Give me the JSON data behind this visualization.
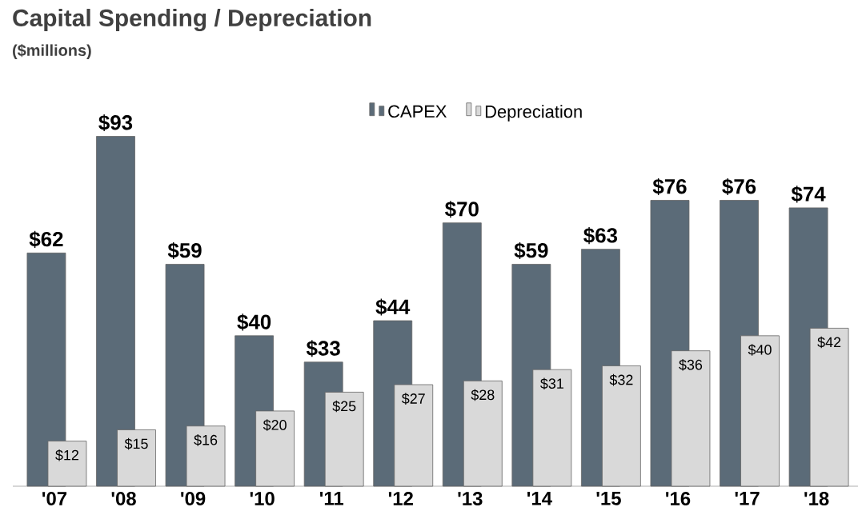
{
  "chart_data": {
    "type": "bar",
    "title": "Capital Spending / Depreciation",
    "subtitle": "($millions)",
    "categories": [
      "'07",
      "'08",
      "'09",
      "'10",
      "'11",
      "'12",
      "'13",
      "'14",
      "'15",
      "'16",
      "'17",
      "'18"
    ],
    "series": [
      {
        "name": "CAPEX",
        "color": "#5b6b78",
        "values": [
          62,
          93,
          59,
          40,
          33,
          44,
          70,
          59,
          63,
          76,
          76,
          74
        ],
        "value_labels": [
          "$62",
          "$93",
          "$59",
          "$40",
          "$33",
          "$44",
          "$70",
          "$59",
          "$63",
          "$76",
          "$76",
          "$74"
        ]
      },
      {
        "name": "Depreciation",
        "color": "#d9d9d9",
        "values": [
          12,
          15,
          16,
          20,
          25,
          27,
          28,
          31,
          32,
          36,
          40,
          42
        ],
        "value_labels": [
          "$12",
          "$15",
          "$16",
          "$20",
          "$25",
          "$27",
          "$28",
          "$31",
          "$32",
          "$36",
          "$40",
          "$42"
        ]
      }
    ],
    "legend": "top"
  }
}
